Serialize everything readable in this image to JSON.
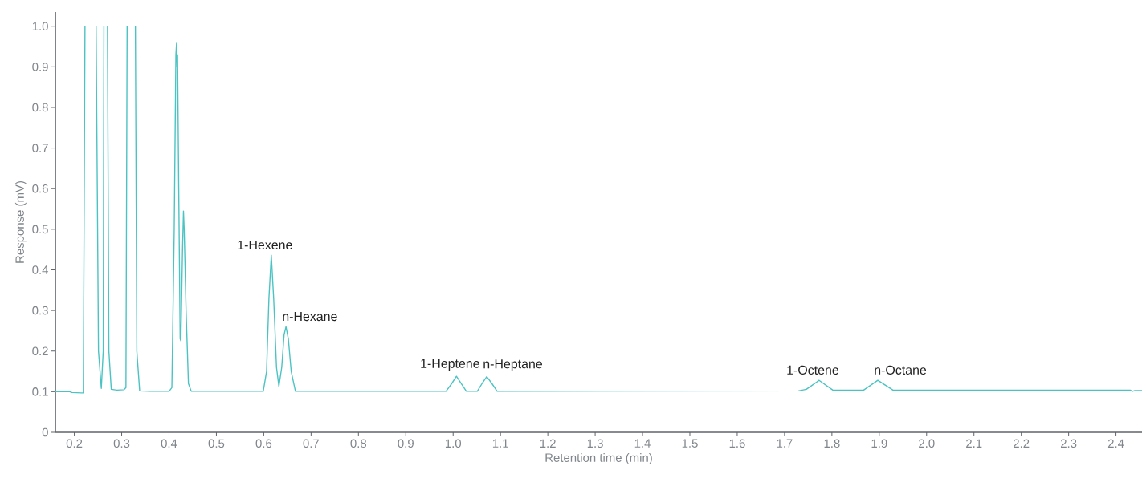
{
  "chart_data": {
    "type": "line",
    "xlabel": "Retention time (min)",
    "ylabel": "Response (mV)",
    "xlim": [
      0.16,
      2.455
    ],
    "ylim": [
      0,
      1.035
    ],
    "xticks": [
      0.2,
      0.3,
      0.4,
      0.5,
      0.6,
      0.7,
      0.8,
      0.9,
      {
        "value": 1,
        "label": "1.0"
      },
      1.1,
      1.2,
      1.3,
      1.4,
      1.5,
      1.6,
      1.7,
      1.8,
      1.9,
      {
        "value": 2,
        "label": "2.0"
      },
      2.1,
      2.2,
      2.3,
      2.4
    ],
    "yticks": [
      0,
      0.1,
      0.2,
      0.3,
      0.4,
      0.5,
      0.6,
      0.7,
      0.8,
      0.9,
      {
        "value": 1,
        "label": "1.0"
      }
    ],
    "x": [
      0.16,
      0.19,
      0.195,
      0.215,
      0.219,
      0.2225,
      0.234,
      0.246,
      0.251,
      0.257,
      0.261,
      0.2625,
      0.266,
      0.27,
      0.273,
      0.278,
      0.29,
      0.305,
      0.309,
      0.3115,
      0.32,
      0.329,
      0.332,
      0.338,
      0.36,
      0.4,
      0.406,
      0.411,
      0.4145,
      0.416,
      0.417,
      0.418,
      0.4205,
      0.4235,
      0.425,
      0.4285,
      0.4305,
      0.432,
      0.436,
      0.441,
      0.447,
      0.599,
      0.606,
      0.611,
      0.616,
      0.621,
      0.627,
      0.632,
      0.638,
      0.643,
      0.647,
      0.652,
      0.658,
      0.667,
      0.985,
      0.997,
      1.007,
      1.017,
      1.028,
      1.051,
      1.061,
      1.071,
      1.082,
      1.093,
      1.729,
      1.746,
      1.773,
      1.802,
      1.867,
      1.897,
      1.929,
      2.43,
      2.435,
      2.44,
      2.455
    ],
    "series": [
      {
        "color": "#4cc3c3",
        "values": [
          0.1,
          0.1,
          0.098,
          0.097,
          0.097,
          1.0,
          null,
          1.0,
          0.2,
          0.108,
          0.2,
          1.0,
          null,
          1.0,
          0.2,
          0.106,
          0.104,
          0.105,
          0.11,
          1.0,
          null,
          1.0,
          0.2,
          0.102,
          0.101,
          0.101,
          0.11,
          0.5,
          0.93,
          0.96,
          0.9,
          0.93,
          0.6,
          0.23,
          0.225,
          0.45,
          0.545,
          0.5,
          0.3,
          0.12,
          0.101,
          0.101,
          0.15,
          0.33,
          0.436,
          0.33,
          0.16,
          0.113,
          0.16,
          0.24,
          0.26,
          0.23,
          0.15,
          0.101,
          0.101,
          0.12,
          0.138,
          0.12,
          0.101,
          0.101,
          0.12,
          0.137,
          0.12,
          0.101,
          0.102,
          0.106,
          0.128,
          0.104,
          0.104,
          0.128,
          0.104,
          0.104,
          0.101,
          0.103,
          0.103
        ]
      }
    ],
    "annotations": [
      {
        "text": "1-Hexene",
        "x": 0.616,
        "y": 0.436
      },
      {
        "text": "n-Hexane",
        "x": 0.647,
        "y": 0.26
      },
      {
        "text": "1-Heptene",
        "x": 1.007,
        "y": 0.138
      },
      {
        "text": "n-Heptane",
        "x": 1.071,
        "y": 0.137
      },
      {
        "text": "1-Octene",
        "x": 1.773,
        "y": 0.128
      },
      {
        "text": "n-Octane",
        "x": 1.897,
        "y": 0.128
      }
    ]
  }
}
